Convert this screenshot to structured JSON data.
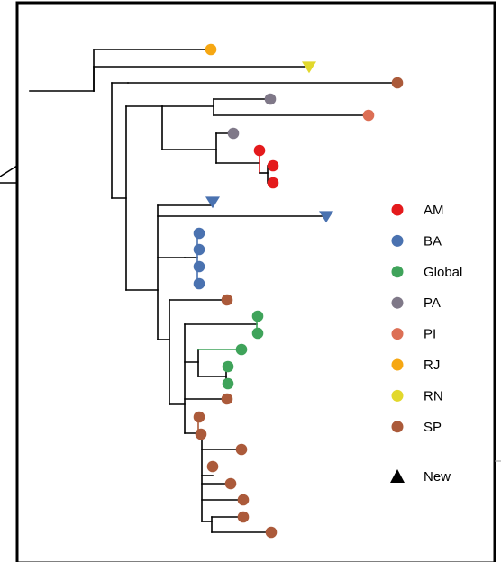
{
  "colors": {
    "AM": "#e41a1c",
    "BA": "#4a72b0",
    "Global": "#3fa35a",
    "PA": "#7f7888",
    "PI": "#dc6f55",
    "RJ": "#f6a712",
    "RN": "#e2d82c",
    "SP": "#ab5a3a"
  },
  "legend": {
    "items": [
      {
        "key": "AM",
        "label": "AM",
        "color": "#e41a1c",
        "shape": "circle"
      },
      {
        "key": "BA",
        "label": "BA",
        "color": "#4a72b0",
        "shape": "circle"
      },
      {
        "key": "Global",
        "label": "Global",
        "color": "#3fa35a",
        "shape": "circle"
      },
      {
        "key": "PA",
        "label": "PA",
        "color": "#7f7888",
        "shape": "circle"
      },
      {
        "key": "PI",
        "label": "PI",
        "color": "#dc6f55",
        "shape": "circle"
      },
      {
        "key": "RJ",
        "label": "RJ",
        "color": "#f6a712",
        "shape": "circle"
      },
      {
        "key": "RN",
        "label": "RN",
        "color": "#e2d82c",
        "shape": "circle"
      },
      {
        "key": "SP",
        "label": "SP",
        "color": "#ab5a3a",
        "shape": "circle"
      }
    ],
    "new_marker": {
      "label": "New",
      "color": "#000000",
      "shape": "triangle"
    }
  },
  "tips": [
    {
      "group": "RJ",
      "new": false
    },
    {
      "group": "RN",
      "new": true
    },
    {
      "group": "SP",
      "new": false
    },
    {
      "group": "PA",
      "new": false
    },
    {
      "group": "PI",
      "new": false
    },
    {
      "group": "PA",
      "new": false
    },
    {
      "group": "AM",
      "new": false
    },
    {
      "group": "AM",
      "new": false
    },
    {
      "group": "AM",
      "new": false
    },
    {
      "group": "BA",
      "new": true
    },
    {
      "group": "BA",
      "new": true
    },
    {
      "group": "BA",
      "new": false
    },
    {
      "group": "BA",
      "new": false
    },
    {
      "group": "BA",
      "new": false
    },
    {
      "group": "BA",
      "new": false
    },
    {
      "group": "SP",
      "new": false
    },
    {
      "group": "Global",
      "new": false
    },
    {
      "group": "Global",
      "new": false
    },
    {
      "group": "Global",
      "new": false
    },
    {
      "group": "Global",
      "new": false
    },
    {
      "group": "Global",
      "new": false
    },
    {
      "group": "SP",
      "new": false
    },
    {
      "group": "SP",
      "new": false
    },
    {
      "group": "SP",
      "new": false
    },
    {
      "group": "SP",
      "new": false
    },
    {
      "group": "SP",
      "new": false
    },
    {
      "group": "SP",
      "new": false
    },
    {
      "group": "SP",
      "new": false
    },
    {
      "group": "SP",
      "new": false
    },
    {
      "group": "SP",
      "new": false
    }
  ]
}
